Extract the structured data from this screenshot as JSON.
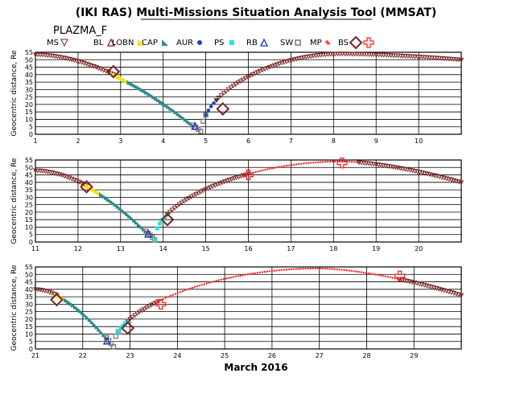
{
  "title": "(IKI RAS) Multi-Missions Situation Analysis Tool (MMSAT)",
  "mission": "PLAZMA_F",
  "xlabel": "March 2016",
  "ylabel": "Geocentric distance, Re",
  "legend": [
    {
      "label": "MS",
      "color": "#7a2222",
      "marker": "tri-down-open"
    },
    {
      "label": "BL",
      "color": "#7a2222",
      "marker": "tri-open"
    },
    {
      "label": "LOBN",
      "color": "#f2e20a",
      "marker": "tri-fill"
    },
    {
      "label": "CAP",
      "color": "#2e8b8b",
      "marker": "tri-fill"
    },
    {
      "label": "AUR",
      "color": "#1a3fbf",
      "marker": "dot"
    },
    {
      "label": "PS",
      "color": "#2ee0e0",
      "marker": "square"
    },
    {
      "label": "RB",
      "color": "#1a2fbf",
      "marker": "tri-open"
    },
    {
      "label": "SW",
      "color": "#777777",
      "marker": "square-open"
    },
    {
      "label": "MP",
      "color": "#ff2222",
      "marker": "star"
    },
    {
      "label": "BS",
      "color": "#7a2222",
      "marker": "diamond"
    },
    {
      "label": "",
      "color": "#ff2222",
      "marker": "plus"
    }
  ],
  "chart_data": [
    {
      "type": "scatter",
      "xlim": [
        1,
        11
      ],
      "ylim": [
        0,
        55
      ],
      "x_ticks": [
        "1",
        "2",
        "3",
        "4",
        "5",
        "6",
        "7",
        "8",
        "9",
        "10"
      ],
      "y_ticks": [
        "0",
        "5",
        "10",
        "15",
        "20",
        "25",
        "30",
        "35",
        "40",
        "45",
        "50",
        "55"
      ],
      "apogee": {
        "x": 8.2,
        "y": 54
      },
      "trajectory": [
        {
          "region": "MS",
          "x": [
            1.0,
            2.83
          ],
          "y0": 53.5,
          "color": "#7a2222"
        },
        {
          "region": "LOBN",
          "x": [
            2.83,
            3.2
          ],
          "color": "#f2e20a"
        },
        {
          "region": "CAP",
          "x": [
            3.2,
            4.7
          ],
          "color": "#2e8b8b"
        },
        {
          "region": "SW",
          "x": [
            4.7,
            5.0
          ],
          "color": "#777777"
        },
        {
          "region": "AUR",
          "x": [
            5.0,
            5.25
          ],
          "color": "#1a3fbf"
        },
        {
          "region": "MS",
          "x": [
            5.25,
            11.0
          ],
          "y1": 50,
          "color": "#7a2222"
        }
      ],
      "perigee": {
        "x": 4.9,
        "y": 1.5
      },
      "crossings": [
        {
          "type": "BS",
          "x": 2.83,
          "y": 42
        },
        {
          "type": "BS",
          "x": 5.4,
          "y": 17
        }
      ]
    },
    {
      "type": "scatter",
      "xlim": [
        11,
        21
      ],
      "ylim": [
        0,
        55
      ],
      "x_ticks": [
        "11",
        "12",
        "13",
        "14",
        "15",
        "16",
        "17",
        "18",
        "19",
        "20"
      ],
      "y_ticks": [
        "0",
        "5",
        "10",
        "15",
        "20",
        "25",
        "30",
        "35",
        "40",
        "45",
        "50",
        "55"
      ],
      "apogee": {
        "x": 18.2,
        "y": 54
      },
      "trajectory": [
        {
          "region": "MS",
          "x": [
            11.0,
            12.2
          ],
          "y0": 48,
          "color": "#7a2222"
        },
        {
          "region": "LOBN",
          "x": [
            12.2,
            12.55
          ],
          "color": "#f2e20a"
        },
        {
          "region": "CAP",
          "x": [
            12.55,
            13.6
          ],
          "color": "#2e8b8b"
        },
        {
          "region": "SW",
          "x": [
            13.6,
            13.8
          ],
          "color": "#777777"
        },
        {
          "region": "PS",
          "x": [
            13.8,
            14.1
          ],
          "color": "#2ee0e0"
        },
        {
          "region": "MS",
          "x": [
            14.1,
            16.0
          ],
          "color": "#7a2222"
        },
        {
          "region": "SW",
          "x": [
            16.0,
            18.6
          ],
          "color": "#ff2222"
        },
        {
          "region": "MS",
          "x": [
            18.6,
            21.0
          ],
          "y1": 40,
          "color": "#7a2222"
        }
      ],
      "perigee": {
        "x": 13.8,
        "y": 1.5
      },
      "crossings": [
        {
          "type": "BS",
          "x": 12.2,
          "y": 37
        },
        {
          "type": "BS",
          "x": 14.1,
          "y": 15
        },
        {
          "type": "MP",
          "x": 16.0,
          "y": 45
        },
        {
          "type": "MP",
          "x": 18.2,
          "y": 53
        }
      ]
    },
    {
      "type": "scatter",
      "xlim": [
        21,
        30
      ],
      "ylim": [
        0,
        55
      ],
      "x_ticks": [
        "21",
        "22",
        "23",
        "24",
        "25",
        "26",
        "27",
        "28",
        "29"
      ],
      "y_ticks": [
        "0",
        "5",
        "10",
        "15",
        "20",
        "25",
        "30",
        "35",
        "40",
        "45",
        "50",
        "55"
      ],
      "apogee": {
        "x": 27.0,
        "y": 54
      },
      "trajectory": [
        {
          "region": "MS",
          "x": [
            21.0,
            21.45
          ],
          "y0": 40,
          "color": "#7a2222"
        },
        {
          "region": "LOBN",
          "x": [
            21.45,
            21.65
          ],
          "color": "#f2e20a"
        },
        {
          "region": "CAP",
          "x": [
            21.65,
            22.5
          ],
          "color": "#2e8b8b"
        },
        {
          "region": "SW",
          "x": [
            22.5,
            22.75
          ],
          "color": "#777777"
        },
        {
          "region": "PS",
          "x": [
            22.75,
            22.95
          ],
          "color": "#2ee0e0"
        },
        {
          "region": "MS",
          "x": [
            22.95,
            23.6
          ],
          "color": "#7a2222"
        },
        {
          "region": "SW",
          "x": [
            23.6,
            28.7
          ],
          "color": "#ff2222"
        },
        {
          "region": "MS",
          "x": [
            28.7,
            30.0
          ],
          "y1": 36,
          "color": "#7a2222"
        }
      ],
      "perigee": {
        "x": 22.65,
        "y": 1.5
      },
      "crossings": [
        {
          "type": "BS",
          "x": 21.45,
          "y": 33
        },
        {
          "type": "BS",
          "x": 22.95,
          "y": 14
        },
        {
          "type": "MP",
          "x": 23.65,
          "y": 30
        },
        {
          "type": "MP",
          "x": 28.7,
          "y": 49
        }
      ]
    }
  ]
}
